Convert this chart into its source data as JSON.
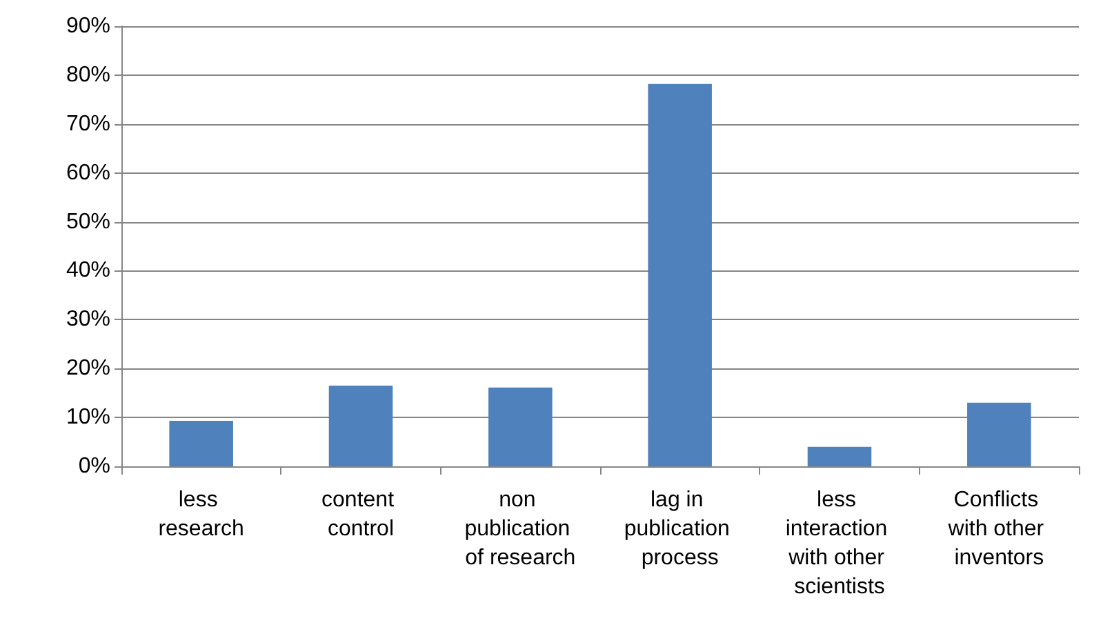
{
  "chart_data": {
    "type": "bar",
    "categories": [
      "less research",
      "content control",
      "non publication of research",
      "lag in publication process",
      "less interaction with other scientists",
      "Conflicts with other inventors"
    ],
    "values": [
      9.3,
      16.5,
      16.1,
      78.2,
      4.0,
      13.0
    ],
    "color": "#4f81bd",
    "ylim": [
      0,
      90
    ],
    "yticks": [
      {
        "value": 0,
        "label": "0%"
      },
      {
        "value": 10,
        "label": "10%"
      },
      {
        "value": 20,
        "label": "20%"
      },
      {
        "value": 30,
        "label": "30%"
      },
      {
        "value": 40,
        "label": "40%"
      },
      {
        "value": 50,
        "label": "50%"
      },
      {
        "value": 60,
        "label": "60%"
      },
      {
        "value": 70,
        "label": "70%"
      },
      {
        "value": 80,
        "label": "80%"
      },
      {
        "value": 90,
        "label": "90%"
      }
    ],
    "grid": "y"
  }
}
